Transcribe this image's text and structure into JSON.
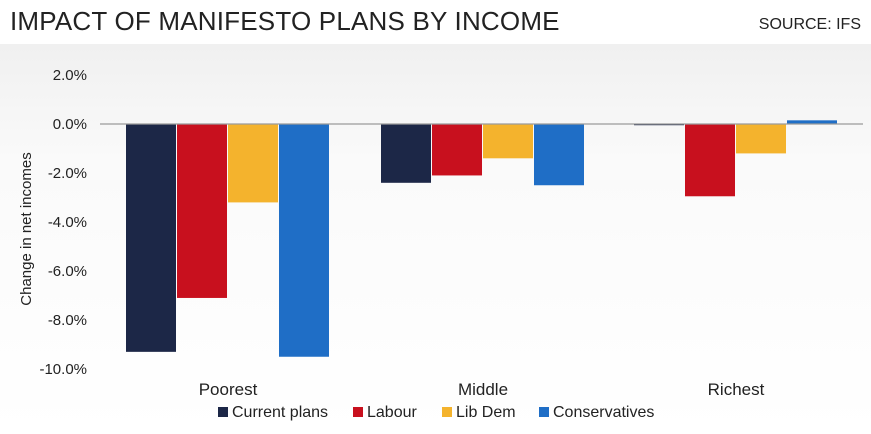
{
  "header": {
    "title": "IMPACT OF MANIFESTO PLANS BY INCOME",
    "source": "SOURCE: IFS"
  },
  "chart_data": {
    "type": "bar",
    "title": "IMPACT OF MANIFESTO PLANS BY INCOME",
    "xlabel": "",
    "ylabel": "Change in net incomes",
    "categories": [
      "Poorest",
      "Middle",
      "Richest"
    ],
    "ylim": [
      -10.0,
      2.0
    ],
    "yticks": [
      "2.0%",
      "0.0%",
      "-2.0%",
      "-4.0%",
      "-6.0%",
      "-8.0%",
      "-10.0%"
    ],
    "ytick_values": [
      2,
      0,
      -2,
      -4,
      -6,
      -8,
      -10
    ],
    "series": [
      {
        "name": "Current plans",
        "color": "#1c2747",
        "values": [
          -9.3,
          -2.4,
          -0.05
        ]
      },
      {
        "name": "Labour",
        "color": "#c8101e",
        "values": [
          -7.1,
          -2.1,
          -2.95
        ]
      },
      {
        "name": "Lib Dem",
        "color": "#f4b32d",
        "values": [
          -3.2,
          -1.4,
          -1.2
        ]
      },
      {
        "name": "Conservatives",
        "color": "#1f6ec6",
        "values": [
          -9.5,
          -2.5,
          0.15
        ]
      }
    ],
    "legend_position": "bottom",
    "grid": false
  }
}
